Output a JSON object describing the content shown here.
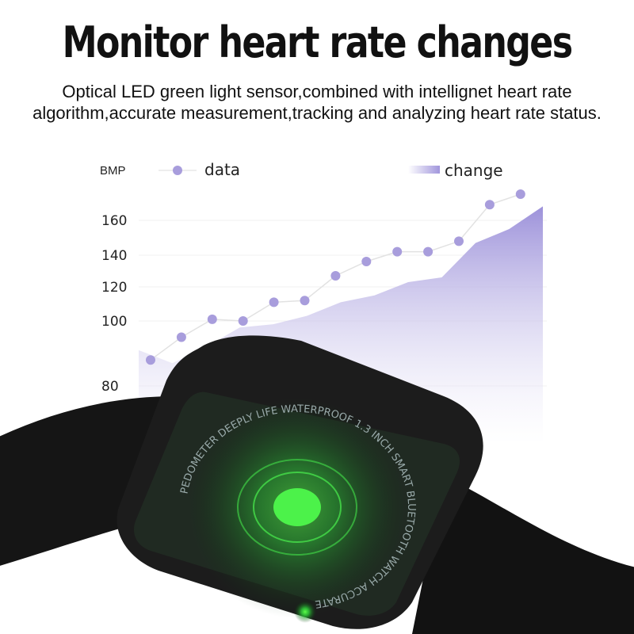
{
  "title": "Monitor heart rate changes",
  "subtitle": "Optical LED green light sensor,combined with intellignet heart rate algorithm,accurate measurement,tracking and analyzing heart rate status.",
  "watch_ring_text": "PEDOMETER DEEPLY LIFE WATERPROOF 1.3 INCH SMART BLUETOOTH WATCH ACCURATE",
  "colors": {
    "series": "#a89ddc",
    "area_top": "#a196dc",
    "glow": "#39e63a",
    "watch": "#1a1a1a"
  },
  "chart_data": {
    "type": "line",
    "ylabel": "BMP",
    "y_ticks": [
      80,
      100,
      120,
      140,
      160
    ],
    "legend": {
      "position": "top",
      "entries": [
        "data",
        "change"
      ]
    },
    "series": [
      {
        "name": "data",
        "kind": "line-markers",
        "values": [
          88,
          95,
          101,
          100,
          111,
          112,
          127,
          136,
          142,
          142,
          148,
          169,
          175
        ]
      },
      {
        "name": "change",
        "kind": "area",
        "values": [
          91,
          87,
          92,
          98,
          99,
          103,
          111,
          115,
          123,
          126,
          147,
          155,
          168
        ]
      }
    ],
    "grid": true
  }
}
